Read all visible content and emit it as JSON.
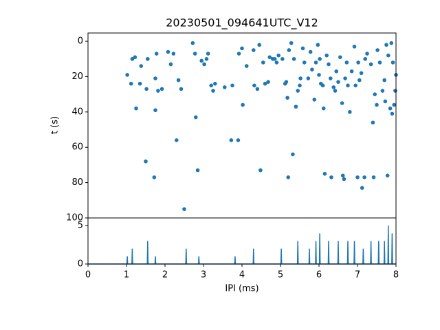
{
  "chart_data": [
    {
      "type": "scatter",
      "title": "20230501_094641UTC_V12",
      "y_label": "t (s)",
      "color": "#1f77b4",
      "xlim": [
        0,
        8
      ],
      "ylim": [
        100,
        -4.7
      ],
      "yticks": [
        0,
        20,
        40,
        60,
        80,
        100
      ],
      "x": [
        1.02,
        1.12,
        1.15,
        1.22,
        1.25,
        1.35,
        1.38,
        1.5,
        1.52,
        1.55,
        1.72,
        1.75,
        1.75,
        1.78,
        1.82,
        1.92,
        2.08,
        2.15,
        2.22,
        2.3,
        2.35,
        2.42,
        2.5,
        2.72,
        2.78,
        2.8,
        2.85,
        2.95,
        3.02,
        3.08,
        3.12,
        3.2,
        3.25,
        3.3,
        3.55,
        3.72,
        3.75,
        3.9,
        3.92,
        4.0,
        4.02,
        4.12,
        4.3,
        4.32,
        4.4,
        4.45,
        4.48,
        4.55,
        4.6,
        4.68,
        4.72,
        4.8,
        4.85,
        4.9,
        4.95,
        5.05,
        5.12,
        5.15,
        5.18,
        5.2,
        5.22,
        5.28,
        5.32,
        5.35,
        5.4,
        5.45,
        5.5,
        5.52,
        5.58,
        5.62,
        5.72,
        5.78,
        5.82,
        5.88,
        5.92,
        5.97,
        6.0,
        6.02,
        6.05,
        6.1,
        6.12,
        6.15,
        6.2,
        6.25,
        6.3,
        6.32,
        6.38,
        6.42,
        6.45,
        6.5,
        6.55,
        6.6,
        6.62,
        6.65,
        6.68,
        6.72,
        6.75,
        6.8,
        6.85,
        6.92,
        6.95,
        7.0,
        7.02,
        7.05,
        7.1,
        7.12,
        7.18,
        7.2,
        7.25,
        7.35,
        7.4,
        7.42,
        7.45,
        7.5,
        7.52,
        7.58,
        7.65,
        7.7,
        7.72,
        7.75,
        7.78,
        7.8,
        7.85,
        7.88,
        7.9,
        7.92,
        7.95,
        7.98,
        8.0
      ],
      "values": [
        19,
        24,
        10,
        9,
        38,
        24,
        14,
        68,
        27,
        10,
        77,
        21,
        39,
        7,
        28,
        27,
        6,
        13,
        7,
        56,
        22,
        27,
        95,
        1,
        7,
        43,
        73,
        11,
        13,
        10,
        7,
        25,
        28,
        24,
        26,
        56,
        25,
        56,
        7,
        4,
        36,
        14,
        5,
        25,
        27,
        2,
        73,
        12,
        24,
        23,
        9,
        10,
        10,
        12,
        8,
        10,
        24,
        23,
        32,
        77,
        5,
        1,
        64,
        10,
        37,
        28,
        25,
        21,
        4,
        12,
        21,
        6,
        16,
        33,
        12,
        2,
        19,
        10,
        24,
        25,
        38,
        75,
        8,
        13,
        21,
        77,
        26,
        28,
        17,
        23,
        9,
        35,
        76,
        78,
        21,
        12,
        25,
        40,
        17,
        3,
        25,
        77,
        12,
        22,
        18,
        83,
        77,
        10,
        7,
        13,
        46,
        77,
        30,
        36,
        5,
        12,
        28,
        22,
        34,
        2,
        76,
        8,
        38,
        1,
        41,
        12,
        36,
        28,
        19
      ]
    },
    {
      "type": "line",
      "x_label": "IPI (ms)",
      "color": "#1f77b4",
      "xlim": [
        0,
        8
      ],
      "ylim": [
        0,
        6
      ],
      "yticks": [
        0,
        5
      ],
      "xticks": [
        0,
        1,
        2,
        3,
        4,
        5,
        6,
        7,
        8
      ],
      "x": [
        0,
        1.01,
        1.02,
        1.03,
        1.14,
        1.15,
        1.16,
        1.54,
        1.55,
        1.56,
        1.74,
        1.75,
        1.76,
        2.54,
        2.55,
        2.56,
        2.87,
        2.88,
        2.89,
        3.81,
        3.82,
        3.83,
        4.29,
        4.3,
        4.31,
        5.01,
        5.02,
        5.03,
        5.44,
        5.45,
        5.46,
        5.74,
        5.75,
        5.76,
        5.91,
        5.92,
        5.93,
        6.01,
        6.02,
        6.03,
        6.24,
        6.25,
        6.26,
        6.49,
        6.5,
        6.51,
        6.74,
        6.75,
        6.76,
        6.91,
        6.92,
        6.93,
        7.14,
        7.15,
        7.16,
        7.34,
        7.35,
        7.36,
        7.54,
        7.55,
        7.56,
        7.69,
        7.7,
        7.71,
        7.79,
        7.8,
        7.81,
        7.89,
        7.9,
        7.91,
        8
      ],
      "values": [
        0,
        0,
        1,
        0,
        0,
        2,
        0,
        0,
        3,
        0,
        0,
        1,
        0,
        0,
        2,
        0,
        0,
        1,
        0,
        0,
        1,
        0,
        0,
        2,
        0,
        0,
        2,
        0,
        0,
        3,
        0,
        0,
        2,
        0,
        0,
        3,
        0,
        0,
        4,
        0,
        0,
        3,
        0,
        0,
        3,
        0,
        0,
        3,
        0,
        0,
        3,
        0,
        0,
        2,
        0,
        0,
        3,
        0,
        0,
        3,
        0,
        0,
        3,
        0,
        0,
        5,
        0,
        0,
        4,
        0,
        0
      ]
    }
  ]
}
